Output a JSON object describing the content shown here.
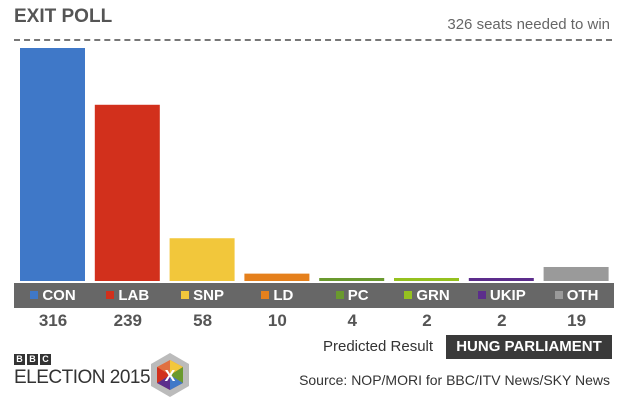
{
  "chart_data": {
    "type": "bar",
    "title": "EXIT POLL",
    "annotation": "326 seats needed to win",
    "categories": [
      "CON",
      "LAB",
      "SNP",
      "LD",
      "PC",
      "GRN",
      "UKIP",
      "OTH"
    ],
    "values": [
      316,
      239,
      58,
      10,
      4,
      2,
      2,
      19
    ],
    "colors": [
      "#3f78c8",
      "#d2301c",
      "#f2c73b",
      "#e5801c",
      "#6a9a2e",
      "#95c11f",
      "#5c2d8c",
      "#9a9a9a"
    ],
    "ylim": [
      0,
      326
    ]
  },
  "footer": {
    "predicted_label": "Predicted Result",
    "predicted_value": "HUNG PARLIAMENT",
    "source": "Source: NOP/MORI for BBC/ITV News/SKY News"
  },
  "logo": {
    "bbc": [
      "B",
      "B",
      "C"
    ],
    "text": "ELECTION 2015",
    "mark": "X"
  }
}
